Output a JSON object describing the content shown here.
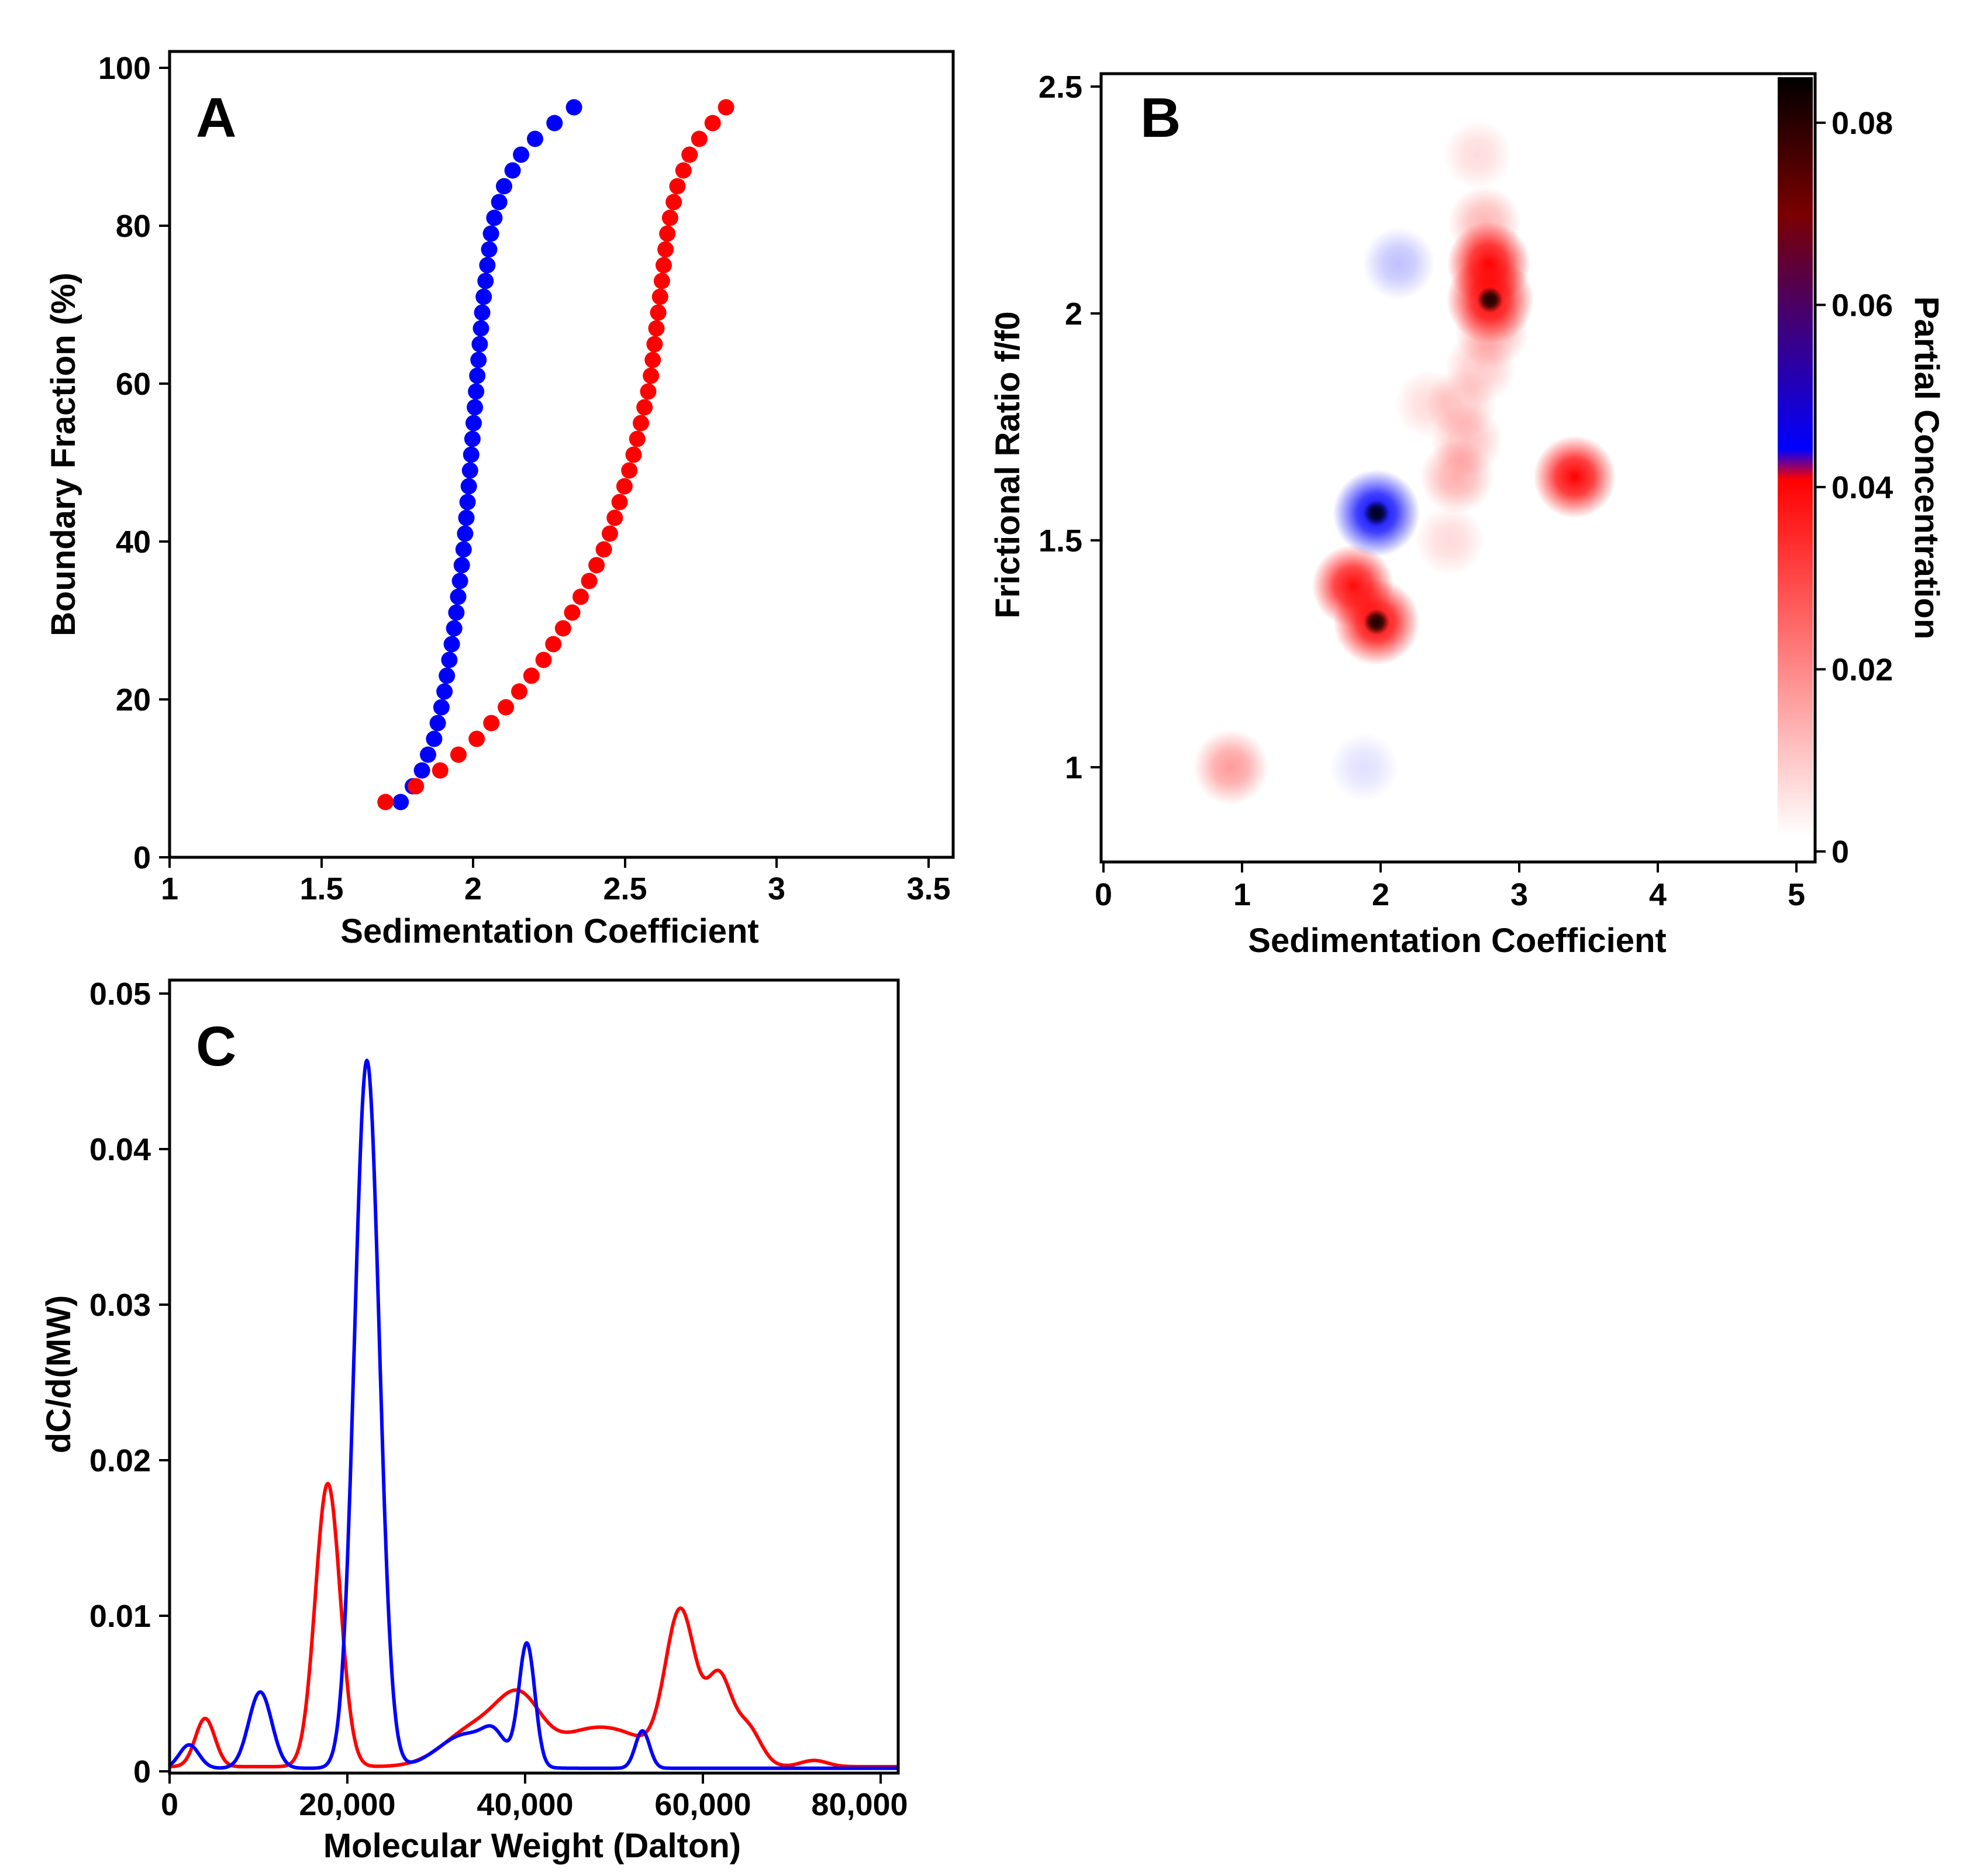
{
  "colors": {
    "red": "#ff0000",
    "blue": "#0000ff",
    "black": "#000000"
  },
  "chart_data": [
    {
      "panel": "A",
      "type": "scatter",
      "xlabel": "Sedimentation Coefficient",
      "ylabel": "Boundary Fraction (%)",
      "xlim": [
        1,
        3.55
      ],
      "ylim": [
        0,
        100
      ],
      "xticks": [
        1,
        1.5,
        2,
        2.5,
        3,
        3.5
      ],
      "xtick_labels": [
        "1",
        "1.5",
        "2",
        "2.5",
        "3",
        "3.5"
      ],
      "yticks": [
        0,
        20,
        40,
        60,
        80,
        100
      ],
      "ytick_labels": [
        "0",
        "20",
        "40",
        "60",
        "80",
        "100"
      ],
      "series": [
        {
          "name": "blue",
          "color": "#0000ff",
          "x_curve": [
            [
              7,
              1.76
            ],
            [
              10,
              1.82
            ],
            [
              15,
              1.87
            ],
            [
              20,
              1.9
            ],
            [
              25,
              1.92
            ],
            [
              30,
              1.94
            ],
            [
              40,
              1.97
            ],
            [
              50,
              1.99
            ],
            [
              60,
              2.01
            ],
            [
              70,
              2.03
            ],
            [
              80,
              2.06
            ],
            [
              85,
              2.1
            ],
            [
              90,
              2.17
            ],
            [
              95,
              2.33
            ]
          ]
        },
        {
          "name": "red",
          "color": "#ff0000",
          "x_curve": [
            [
              7,
              1.71
            ],
            [
              10,
              1.86
            ],
            [
              15,
              2.01
            ],
            [
              20,
              2.13
            ],
            [
              25,
              2.23
            ],
            [
              30,
              2.31
            ],
            [
              35,
              2.38
            ],
            [
              40,
              2.44
            ],
            [
              45,
              2.48
            ],
            [
              50,
              2.52
            ],
            [
              55,
              2.55
            ],
            [
              60,
              2.58
            ],
            [
              70,
              2.61
            ],
            [
              80,
              2.64
            ],
            [
              85,
              2.67
            ],
            [
              90,
              2.72
            ],
            [
              95,
              2.83
            ]
          ]
        }
      ]
    },
    {
      "panel": "B",
      "type": "heatmap",
      "xlabel": "Sedimentation Coefficient",
      "ylabel": "Frictional Ratio f/f0",
      "xlim": [
        0,
        5.05
      ],
      "ylim": [
        0.82,
        2.53
      ],
      "xticks": [
        0,
        1,
        2,
        3,
        4,
        5
      ],
      "xtick_labels": [
        "0",
        "1",
        "2",
        "3",
        "4",
        "5"
      ],
      "yticks": [
        1,
        1.5,
        2,
        2.5
      ],
      "ytick_labels": [
        "1",
        "1.5",
        "2",
        "2.5"
      ],
      "colorbar": {
        "label": "Partial Concentration",
        "ticks": [
          0,
          0.02,
          0.04,
          0.06,
          0.08
        ],
        "tick_labels": [
          "0",
          "0.02",
          "0.04",
          "0.06",
          "0.08"
        ],
        "range": [
          0,
          0.085
        ]
      },
      "spots": [
        {
          "s": 0.92,
          "f": 1.0,
          "c": 0.018,
          "color": "red"
        },
        {
          "s": 1.8,
          "f": 1.4,
          "c": 0.048,
          "color": "red"
        },
        {
          "s": 1.97,
          "f": 1.32,
          "c": 0.075,
          "color": "red"
        },
        {
          "s": 2.78,
          "f": 2.11,
          "c": 0.055,
          "color": "red"
        },
        {
          "s": 2.79,
          "f": 2.03,
          "c": 0.082,
          "color": "red"
        },
        {
          "s": 3.4,
          "f": 1.64,
          "c": 0.052,
          "color": "red"
        },
        {
          "s": 2.55,
          "f": 1.64,
          "c": 0.014,
          "color": "red"
        },
        {
          "s": 2.62,
          "f": 1.72,
          "c": 0.01,
          "color": "red"
        },
        {
          "s": 2.58,
          "f": 1.8,
          "c": 0.008,
          "color": "red"
        },
        {
          "s": 2.72,
          "f": 1.88,
          "c": 0.008,
          "color": "red"
        },
        {
          "s": 2.8,
          "f": 1.96,
          "c": 0.014,
          "color": "red"
        },
        {
          "s": 2.75,
          "f": 2.2,
          "c": 0.012,
          "color": "red"
        },
        {
          "s": 2.7,
          "f": 2.35,
          "c": 0.004,
          "color": "red"
        },
        {
          "s": 2.5,
          "f": 1.5,
          "c": 0.005,
          "color": "red"
        },
        {
          "s": 2.35,
          "f": 1.8,
          "c": 0.004,
          "color": "red"
        },
        {
          "s": 1.97,
          "f": 1.56,
          "c": 0.08,
          "color": "blue"
        },
        {
          "s": 2.13,
          "f": 2.11,
          "c": 0.01,
          "color": "blue"
        },
        {
          "s": 1.88,
          "f": 1.0,
          "c": 0.003,
          "color": "blue"
        }
      ]
    },
    {
      "panel": "C",
      "type": "line",
      "xlabel": "Molecular Weight (Dalton)",
      "ylabel": "dC/d(MW)",
      "xlim": [
        0,
        82000
      ],
      "ylim": [
        0,
        0.051
      ],
      "xticks": [
        0,
        20000,
        40000,
        60000,
        80000
      ],
      "xtick_labels": [
        "0",
        "20,000",
        "40,000",
        "60,000",
        "80,000"
      ],
      "yticks": [
        0,
        0.01,
        0.02,
        0.03,
        0.04,
        0.05
      ],
      "ytick_labels": [
        "0",
        "0.01",
        "0.02",
        "0.03",
        "0.04",
        "0.05"
      ],
      "series": [
        {
          "name": "red",
          "color": "#ff0000",
          "baseline": 0.0003,
          "peaks": [
            [
              4000,
              0.0031,
              1100
            ],
            [
              17800,
              0.0182,
              1400
            ],
            [
              34500,
              0.0025,
              3500
            ],
            [
              39500,
              0.0038,
              2500
            ],
            [
              46000,
              0.0015,
              3000
            ],
            [
              51000,
              0.0019,
              3500
            ],
            [
              57500,
              0.0098,
              1700
            ],
            [
              61800,
              0.0055,
              1400
            ],
            [
              65000,
              0.0025,
              1500
            ],
            [
              72500,
              0.0004,
              1500
            ]
          ]
        },
        {
          "name": "blue",
          "color": "#0000ff",
          "baseline": 0.0002,
          "peaks": [
            [
              2200,
              0.0015,
              1100
            ],
            [
              10200,
              0.0049,
              1300
            ],
            [
              22200,
              0.0455,
              1400
            ],
            [
              33500,
              0.0022,
              3200
            ],
            [
              36500,
              0.0012,
              1200
            ],
            [
              40200,
              0.0078,
              900
            ],
            [
              53200,
              0.0024,
              800
            ]
          ]
        }
      ]
    }
  ]
}
